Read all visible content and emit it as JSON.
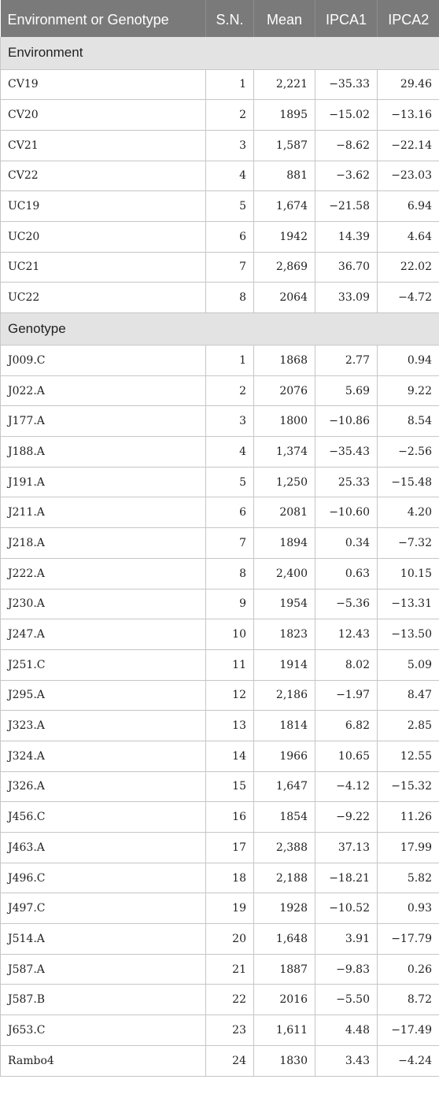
{
  "headers": [
    "Environment or Genotype",
    "S.N.",
    "Mean",
    "IPCA1",
    "IPCA2"
  ],
  "sections": [
    {
      "title": "Environment",
      "rows": [
        [
          "CV19",
          "1",
          "2,221",
          "−35.33",
          "29.46"
        ],
        [
          "CV20",
          "2",
          "1895",
          "−15.02",
          "−13.16"
        ],
        [
          "CV21",
          "3",
          "1,587",
          "−8.62",
          "−22.14"
        ],
        [
          "CV22",
          "4",
          "881",
          "−3.62",
          "−23.03"
        ],
        [
          "UC19",
          "5",
          "1,674",
          "−21.58",
          "6.94"
        ],
        [
          "UC20",
          "6",
          "1942",
          "14.39",
          "4.64"
        ],
        [
          "UC21",
          "7",
          "2,869",
          "36.70",
          "22.02"
        ],
        [
          "UC22",
          "8",
          "2064",
          "33.09",
          "−4.72"
        ]
      ]
    },
    {
      "title": "Genotype",
      "rows": [
        [
          "J009.C",
          "1",
          "1868",
          "2.77",
          "0.94"
        ],
        [
          "J022.A",
          "2",
          "2076",
          "5.69",
          "9.22"
        ],
        [
          "J177.A",
          "3",
          "1800",
          "−10.86",
          "8.54"
        ],
        [
          "J188.A",
          "4",
          "1,374",
          "−35.43",
          "−2.56"
        ],
        [
          "J191.A",
          "5",
          "1,250",
          "25.33",
          "−15.48"
        ],
        [
          "J211.A",
          "6",
          "2081",
          "−10.60",
          "4.20"
        ],
        [
          "J218.A",
          "7",
          "1894",
          "0.34",
          "−7.32"
        ],
        [
          "J222.A",
          "8",
          "2,400",
          "0.63",
          "10.15"
        ],
        [
          "J230.A",
          "9",
          "1954",
          "−5.36",
          "−13.31"
        ],
        [
          "J247.A",
          "10",
          "1823",
          "12.43",
          "−13.50"
        ],
        [
          "J251.C",
          "11",
          "1914",
          "8.02",
          "5.09"
        ],
        [
          "J295.A",
          "12",
          "2,186",
          "−1.97",
          "8.47"
        ],
        [
          "J323.A",
          "13",
          "1814",
          "6.82",
          "2.85"
        ],
        [
          "J324.A",
          "14",
          "1966",
          "10.65",
          "12.55"
        ],
        [
          "J326.A",
          "15",
          "1,647",
          "−4.12",
          "−15.32"
        ],
        [
          "J456.C",
          "16",
          "1854",
          "−9.22",
          "11.26"
        ],
        [
          "J463.A",
          "17",
          "2,388",
          "37.13",
          "17.99"
        ],
        [
          "J496.C",
          "18",
          "2,188",
          "−18.21",
          "5.82"
        ],
        [
          "J497.C",
          "19",
          "1928",
          "−10.52",
          "0.93"
        ],
        [
          "J514.A",
          "20",
          "1,648",
          "3.91",
          "−17.79"
        ],
        [
          "J587.A",
          "21",
          "1887",
          "−9.83",
          "0.26"
        ],
        [
          "J587.B",
          "22",
          "2016",
          "−5.50",
          "8.72"
        ],
        [
          "J653.C",
          "23",
          "1,611",
          "4.48",
          "−17.49"
        ],
        [
          "Rambo4",
          "24",
          "1830",
          "3.43",
          "−4.24"
        ]
      ]
    }
  ]
}
